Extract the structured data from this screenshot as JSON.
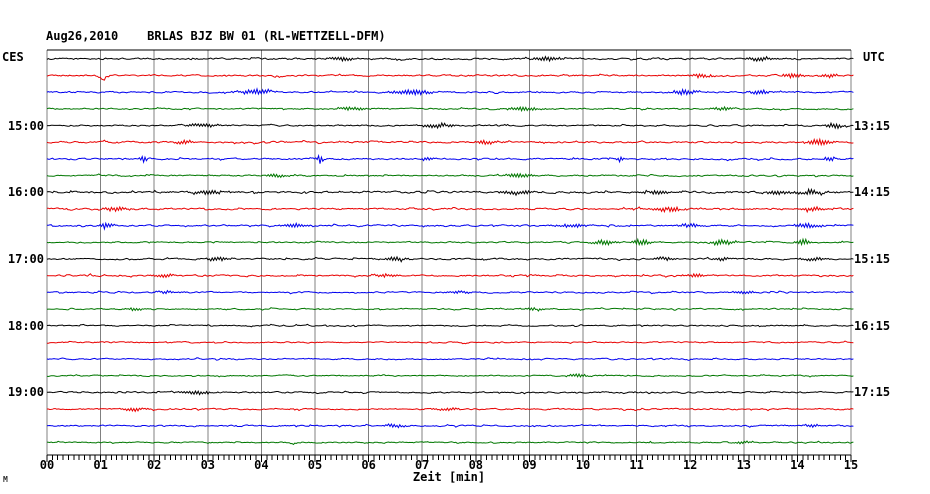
{
  "window": {
    "corner_mark": "M"
  },
  "header": {
    "title": "Aug26,2010    BRLAS BJZ BW 01 (RL-WETTZELL-DFM)",
    "left_timezone": "CES",
    "right_timezone": "UTC"
  },
  "axis": {
    "label": "Zeit [min]",
    "tick_labels": [
      "00",
      "01",
      "02",
      "03",
      "04",
      "05",
      "06",
      "07",
      "08",
      "09",
      "10",
      "11",
      "12",
      "13",
      "14",
      "15"
    ]
  },
  "chart_data": {
    "type": "line",
    "kind": "helicorder-seismogram-drum-record",
    "title": "Aug26,2010    BRLAS BJZ BW 01 (RL-WETTZELL-DFM)",
    "station": "BRLAS BJZ BW 01 (RL-WETTZELL-DFM)",
    "date": "Aug26,2010",
    "xlabel": "Zeit [min]",
    "x_min": 0,
    "x_max": 15,
    "minutes_per_row": 15,
    "grid": true,
    "minor_ticks_per_minute": 9,
    "legend_position": "none",
    "left_axis_timezone": "CES",
    "right_axis_timezone": "UTC",
    "left_axis_times_ces": [
      "15:00",
      "16:00",
      "17:00",
      "18:00",
      "19:00"
    ],
    "right_axis_times_utc": [
      "13:15",
      "14:15",
      "15:15",
      "16:15",
      "17:15"
    ],
    "colors": {
      "background": "#ffffff",
      "grid": "#808080",
      "axis": "#000000",
      "trace_black": "#000000",
      "trace_red": "#e80000",
      "trace_blue": "#0000ee",
      "trace_green": "#007700"
    },
    "rows": [
      {
        "color": "trace_black",
        "left_label": "",
        "right_label": "",
        "amp": 1.2,
        "events": [
          {
            "m": 5.5,
            "a": 2.5,
            "w": 0.2
          },
          {
            "m": 9.3,
            "a": 2.0,
            "w": 0.25
          },
          {
            "m": 13.3,
            "a": 2.0,
            "w": 0.2
          }
        ]
      },
      {
        "color": "trace_red",
        "left_label": "",
        "right_label": "",
        "amp": 1.1,
        "events": [
          {
            "m": 1.05,
            "a": -5.5,
            "w": 0.07
          },
          {
            "m": 4.3,
            "a": -2.5,
            "w": 0.1
          },
          {
            "m": 12.2,
            "a": 2.0,
            "w": 0.2
          },
          {
            "m": 13.9,
            "a": 2.5,
            "w": 0.18
          },
          {
            "m": 14.6,
            "a": 2.0,
            "w": 0.15
          }
        ]
      },
      {
        "color": "trace_blue",
        "left_label": "",
        "right_label": "",
        "amp": 1.1,
        "events": [
          {
            "m": 3.9,
            "a": 2.5,
            "w": 0.3
          },
          {
            "m": 6.8,
            "a": 2.5,
            "w": 0.35
          },
          {
            "m": 11.9,
            "a": 2.5,
            "w": 0.25
          },
          {
            "m": 13.3,
            "a": 2.0,
            "w": 0.2
          }
        ]
      },
      {
        "color": "trace_green",
        "left_label": "",
        "right_label": "",
        "amp": 1.0,
        "events": [
          {
            "m": 5.7,
            "a": 1.8,
            "w": 0.25
          },
          {
            "m": 8.9,
            "a": 1.8,
            "w": 0.3
          },
          {
            "m": 12.6,
            "a": 1.5,
            "w": 0.2
          }
        ]
      },
      {
        "color": "trace_black",
        "left_label": "15:00",
        "right_label": "13:15",
        "amp": 1.0,
        "events": [
          {
            "m": 2.9,
            "a": 1.8,
            "w": 0.3
          },
          {
            "m": 7.3,
            "a": 2.2,
            "w": 0.25
          },
          {
            "m": 14.7,
            "a": 2.8,
            "w": 0.15
          }
        ]
      },
      {
        "color": "trace_red",
        "left_label": "",
        "right_label": "",
        "amp": 1.2,
        "events": [
          {
            "m": 2.6,
            "a": 1.8,
            "w": 0.2
          },
          {
            "m": 8.2,
            "a": 1.8,
            "w": 0.2
          },
          {
            "m": 14.4,
            "a": 2.8,
            "w": 0.25
          }
        ]
      },
      {
        "color": "trace_blue",
        "left_label": "",
        "right_label": "",
        "amp": 1.1,
        "events": [
          {
            "m": 1.8,
            "a": 3.5,
            "w": 0.06
          },
          {
            "m": 5.1,
            "a": 5.0,
            "w": 0.05
          },
          {
            "m": 7.1,
            "a": 2.0,
            "w": 0.1
          },
          {
            "m": 10.7,
            "a": 2.5,
            "w": 0.07
          },
          {
            "m": 14.6,
            "a": 2.5,
            "w": 0.1
          }
        ]
      },
      {
        "color": "trace_green",
        "left_label": "",
        "right_label": "",
        "amp": 1.0,
        "events": [
          {
            "m": 4.3,
            "a": 1.5,
            "w": 0.2
          },
          {
            "m": 8.8,
            "a": 2.0,
            "w": 0.25
          }
        ]
      },
      {
        "color": "trace_black",
        "left_label": "16:00",
        "right_label": "14:15",
        "amp": 1.4,
        "events": [
          {
            "m": 3.0,
            "a": 2.0,
            "w": 0.3
          },
          {
            "m": 8.8,
            "a": 2.0,
            "w": 0.3
          },
          {
            "m": 11.4,
            "a": 2.0,
            "w": 0.25
          },
          {
            "m": 13.6,
            "a": 2.0,
            "w": 0.2
          },
          {
            "m": 14.2,
            "a": 2.2,
            "w": 0.3
          }
        ]
      },
      {
        "color": "trace_red",
        "left_label": "",
        "right_label": "",
        "amp": 1.2,
        "events": [
          {
            "m": 1.3,
            "a": 2.0,
            "w": 0.2
          },
          {
            "m": 11.6,
            "a": 2.2,
            "w": 0.3
          },
          {
            "m": 14.3,
            "a": 2.0,
            "w": 0.2
          }
        ]
      },
      {
        "color": "trace_blue",
        "left_label": "",
        "right_label": "",
        "amp": 1.1,
        "events": [
          {
            "m": 1.1,
            "a": 2.8,
            "w": 0.12
          },
          {
            "m": 4.6,
            "a": 1.8,
            "w": 0.2
          },
          {
            "m": 9.8,
            "a": 1.8,
            "w": 0.25
          },
          {
            "m": 12.0,
            "a": 1.8,
            "w": 0.2
          },
          {
            "m": 14.2,
            "a": 2.0,
            "w": 0.25
          }
        ]
      },
      {
        "color": "trace_green",
        "left_label": "",
        "right_label": "",
        "amp": 1.0,
        "events": [
          {
            "m": 10.4,
            "a": 2.5,
            "w": 0.2
          },
          {
            "m": 11.1,
            "a": 3.5,
            "w": 0.15
          },
          {
            "m": 12.6,
            "a": 2.5,
            "w": 0.2
          },
          {
            "m": 14.1,
            "a": 3.5,
            "w": 0.12
          }
        ]
      },
      {
        "color": "trace_black",
        "left_label": "17:00",
        "right_label": "15:15",
        "amp": 1.1,
        "events": [
          {
            "m": 3.2,
            "a": 2.0,
            "w": 0.2
          },
          {
            "m": 6.5,
            "a": 1.8,
            "w": 0.2
          },
          {
            "m": 11.5,
            "a": 1.6,
            "w": 0.2
          },
          {
            "m": 12.6,
            "a": 1.6,
            "w": 0.15
          },
          {
            "m": 14.3,
            "a": 1.6,
            "w": 0.2
          }
        ]
      },
      {
        "color": "trace_red",
        "left_label": "",
        "right_label": "",
        "amp": 1.1,
        "events": [
          {
            "m": 2.2,
            "a": 1.5,
            "w": 0.2
          },
          {
            "m": 6.3,
            "a": 1.5,
            "w": 0.2
          },
          {
            "m": 12.1,
            "a": 1.5,
            "w": 0.2
          }
        ]
      },
      {
        "color": "trace_blue",
        "left_label": "",
        "right_label": "",
        "amp": 1.0,
        "events": [
          {
            "m": 2.2,
            "a": 1.4,
            "w": 0.2
          },
          {
            "m": 7.7,
            "a": 1.4,
            "w": 0.2
          },
          {
            "m": 13.0,
            "a": 1.4,
            "w": 0.2
          }
        ]
      },
      {
        "color": "trace_green",
        "left_label": "",
        "right_label": "",
        "amp": 0.9,
        "events": [
          {
            "m": 1.6,
            "a": 1.3,
            "w": 0.2
          },
          {
            "m": 9.1,
            "a": 1.3,
            "w": 0.2
          }
        ]
      },
      {
        "color": "trace_black",
        "left_label": "18:00",
        "right_label": "16:15",
        "amp": 0.9,
        "events": []
      },
      {
        "color": "trace_red",
        "left_label": "",
        "right_label": "",
        "amp": 0.9,
        "events": []
      },
      {
        "color": "trace_blue",
        "left_label": "",
        "right_label": "",
        "amp": 0.9,
        "events": []
      },
      {
        "color": "trace_green",
        "left_label": "",
        "right_label": "",
        "amp": 0.9,
        "events": [
          {
            "m": 9.9,
            "a": 1.5,
            "w": 0.2
          }
        ]
      },
      {
        "color": "trace_black",
        "left_label": "19:00",
        "right_label": "17:15",
        "amp": 1.0,
        "events": [
          {
            "m": 2.8,
            "a": 1.5,
            "w": 0.25
          }
        ]
      },
      {
        "color": "trace_red",
        "left_label": "",
        "right_label": "",
        "amp": 1.0,
        "events": [
          {
            "m": 1.6,
            "a": 1.8,
            "w": 0.2
          },
          {
            "m": 7.5,
            "a": 1.3,
            "w": 0.2
          }
        ]
      },
      {
        "color": "trace_blue",
        "left_label": "",
        "right_label": "",
        "amp": 1.0,
        "events": [
          {
            "m": 6.5,
            "a": 1.5,
            "w": 0.2
          },
          {
            "m": 14.3,
            "a": 1.8,
            "w": 0.15
          }
        ]
      },
      {
        "color": "trace_green",
        "left_label": "",
        "right_label": "",
        "amp": 0.9,
        "events": [
          {
            "m": 4.6,
            "a": -1.8,
            "w": 0.1
          },
          {
            "m": 13.0,
            "a": 1.2,
            "w": 0.2
          }
        ]
      }
    ]
  }
}
